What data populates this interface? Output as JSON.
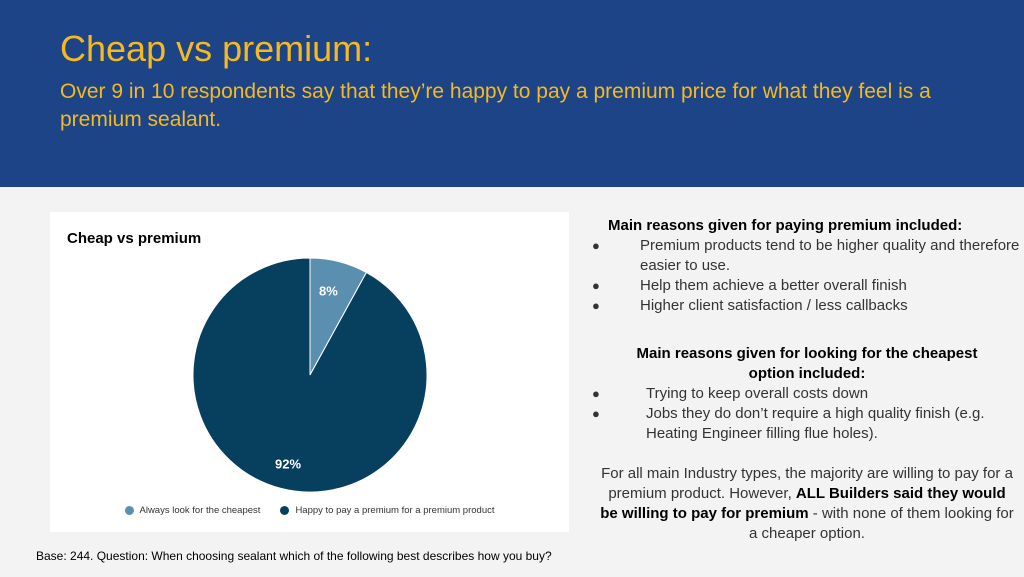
{
  "header": {
    "title": "Cheap vs premium:",
    "subtitle": "Over 9 in 10 respondents say that they’re happy to pay a premium price for what they feel is a premium sealant."
  },
  "chart_data": {
    "type": "pie",
    "title": "Cheap vs premium",
    "categories": [
      "Always look for the cheapest",
      "Happy to pay a premium for a premium product"
    ],
    "values": [
      8,
      92
    ],
    "data_labels": [
      "8%",
      "92%"
    ],
    "colors": [
      "#5b8fb0",
      "#073f5f"
    ],
    "legend_position": "bottom"
  },
  "premium_section": {
    "heading": "Main reasons given for paying premium included:",
    "items": [
      "Premium products tend to be higher quality and therefore easier to use.",
      "Help them achieve a better overall finish",
      "Higher client satisfaction / less callbacks"
    ]
  },
  "cheap_section": {
    "heading": "Main reasons given for looking for the cheapest option included:",
    "items": [
      "Trying to keep overall costs down",
      "Jobs they do don’t require a high quality finish (e.g. Heating Engineer filling flue holes)."
    ]
  },
  "summary": {
    "part1": "For all main Industry types, the majority are willing to pay for a premium product. However,",
    "bold": "ALL Builders said they would be willing to pay for premium",
    "part2": "- with none of them looking for a cheaper option."
  },
  "bullet_glyph": "●",
  "footnote": "Base: 244. Question: When choosing sealant which of the following best describes how you buy?"
}
